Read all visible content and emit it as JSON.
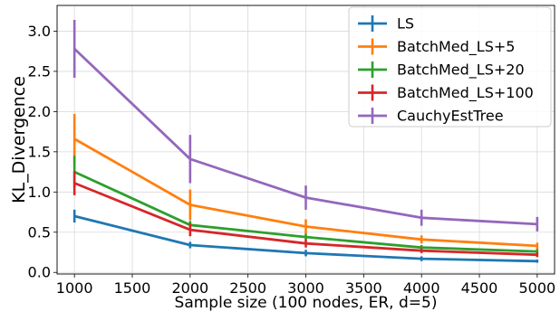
{
  "chart_data": {
    "type": "line",
    "xlabel": "Sample size (100 nodes, ER, d=5)",
    "ylabel": "KL_Divergence",
    "xlim": [
      850,
      5150
    ],
    "ylim": [
      -0.02,
      3.32
    ],
    "x_ticks": [
      "1000",
      "1500",
      "2000",
      "2500",
      "3000",
      "3500",
      "4000",
      "4500",
      "5000"
    ],
    "y_ticks": [
      "0.0",
      "0.5",
      "1.0",
      "1.5",
      "2.0",
      "2.5",
      "3.0"
    ],
    "grid": true,
    "legend_position": "top-right",
    "x": [
      1000,
      2000,
      3000,
      4000,
      5000
    ],
    "series": [
      {
        "name": "LS",
        "color": "#1f77b4",
        "values": [
          0.7,
          0.34,
          0.24,
          0.17,
          0.14
        ],
        "errors": [
          0.08,
          0.04,
          0.04,
          0.03,
          0.02
        ]
      },
      {
        "name": "BatchMed_LS+5",
        "color": "#ff7f0e",
        "values": [
          1.66,
          0.84,
          0.57,
          0.41,
          0.33
        ],
        "errors": [
          0.31,
          0.19,
          0.09,
          0.05,
          0.04
        ]
      },
      {
        "name": "BatchMed_LS+20",
        "color": "#2ca02c",
        "values": [
          1.25,
          0.59,
          0.44,
          0.31,
          0.26
        ],
        "errors": [
          0.2,
          0.05,
          0.04,
          0.03,
          0.03
        ]
      },
      {
        "name": "BatchMed_LS+100",
        "color": "#d62728",
        "values": [
          1.11,
          0.53,
          0.36,
          0.27,
          0.22
        ],
        "errors": [
          0.15,
          0.08,
          0.05,
          0.03,
          0.03
        ]
      },
      {
        "name": "CauchyEstTree",
        "color": "#9467bd",
        "values": [
          2.78,
          1.41,
          0.93,
          0.68,
          0.6
        ],
        "errors": [
          0.36,
          0.3,
          0.15,
          0.1,
          0.09
        ]
      }
    ]
  }
}
